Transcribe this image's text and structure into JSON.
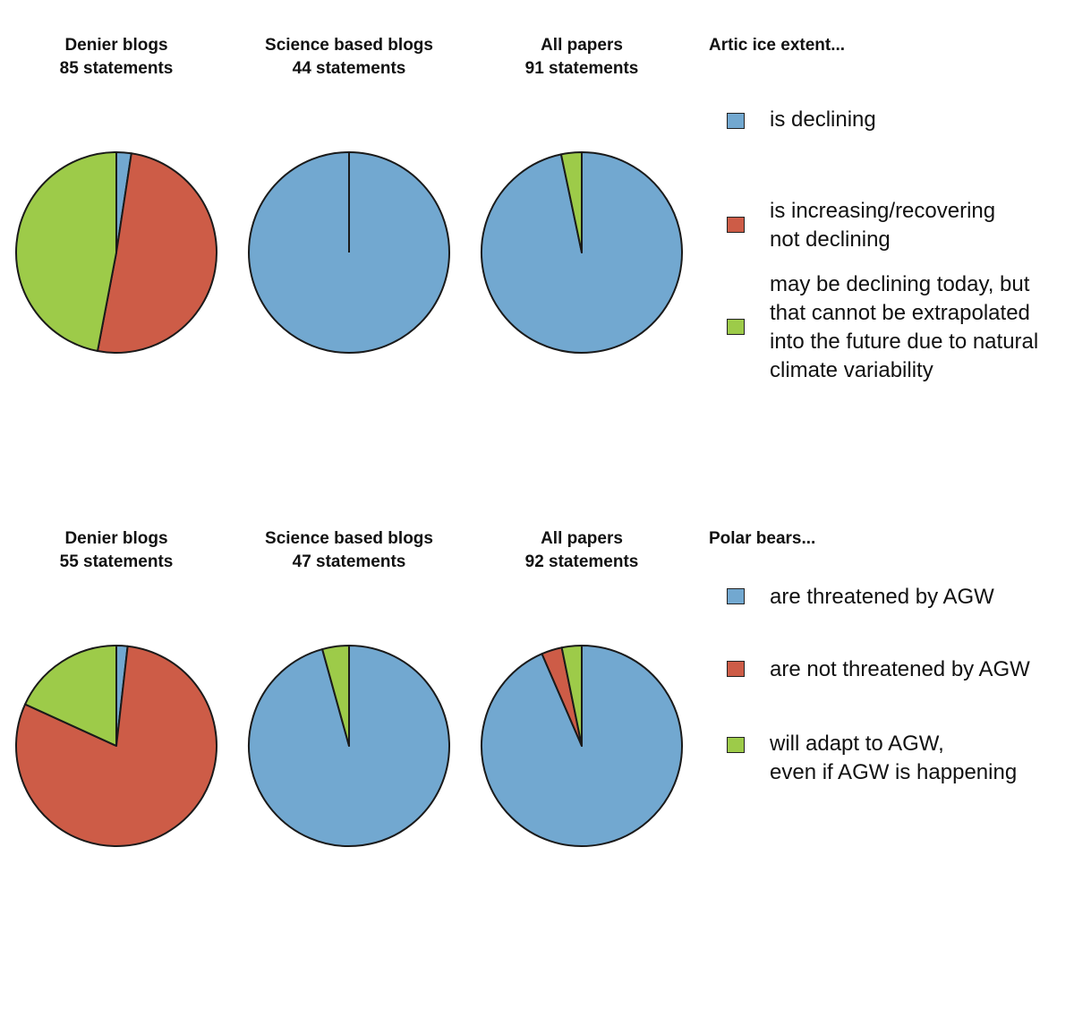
{
  "colors": {
    "blue": "#72a8d0",
    "red": "#cd5c47",
    "green": "#9dcb49",
    "outline": "#1a1a1a"
  },
  "chart_data": [
    {
      "type": "pie",
      "legend_title": "Artic ice extent...",
      "legend_placement": "right",
      "categories": [
        "is declining",
        "is increasing/recovering\nnot declining",
        "may be declining today, but\nthat cannot be extrapolated\ninto the future due to natural\nclimate variability"
      ],
      "series": [
        {
          "title_line1": "Denier blogs",
          "title_line2": "85  statements",
          "values": [
            2.4,
            50.6,
            47.0
          ]
        },
        {
          "title_line1": "Science based blogs",
          "title_line2": "44 statements",
          "values": [
            100,
            0,
            0
          ]
        },
        {
          "title_line1": "All papers",
          "title_line2": "91 statements",
          "values": [
            96.7,
            0,
            3.3
          ]
        }
      ]
    },
    {
      "type": "pie",
      "legend_title": "Polar bears...",
      "legend_placement": "right",
      "categories": [
        "are threatened by AGW",
        "are not threatened by AGW",
        "will adapt to AGW,\neven if AGW is happening"
      ],
      "series": [
        {
          "title_line1": "Denier blogs",
          "title_line2": "55 statements",
          "values": [
            1.8,
            80.0,
            18.2
          ]
        },
        {
          "title_line1": "Science based blogs",
          "title_line2": "47 statements",
          "values": [
            95.7,
            0,
            4.3
          ]
        },
        {
          "title_line1": "All papers",
          "title_line2": "92 statements",
          "values": [
            93.5,
            3.3,
            3.2
          ]
        }
      ]
    }
  ]
}
